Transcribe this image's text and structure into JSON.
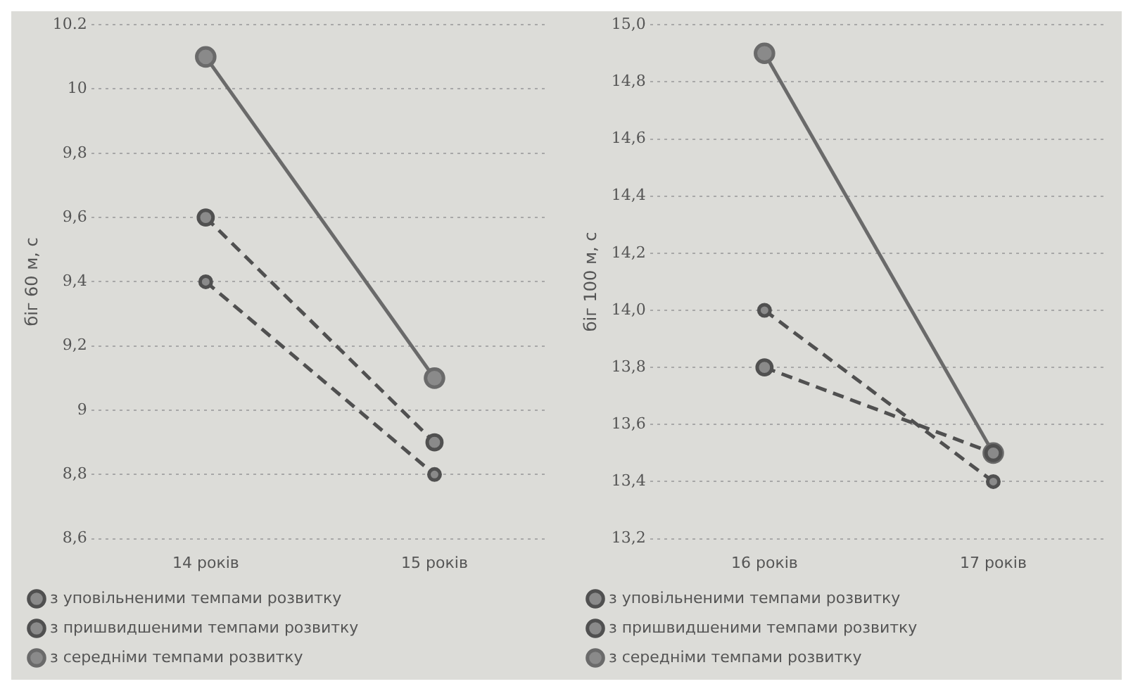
{
  "chart_data": [
    {
      "type": "line",
      "ylabel": "біг 60 м, с",
      "categories": [
        "14 років",
        "15 років"
      ],
      "ylim": [
        8.6,
        10.2
      ],
      "yticks": [
        {
          "value": 8.6,
          "label": "8,6"
        },
        {
          "value": 8.8,
          "label": "8,8"
        },
        9,
        {
          "value": 9.2,
          "label": "9,2"
        },
        {
          "value": 9.4,
          "label": "9,4"
        },
        {
          "value": 9.6,
          "label": "9,6"
        },
        {
          "value": 9.8,
          "label": "9,8"
        },
        10,
        {
          "value": 10.2,
          "label": "10.2"
        }
      ],
      "grid": "y",
      "legend": "bottom",
      "marker": "circle",
      "series": [
        {
          "name": "з уповільненими темпами розвитку",
          "color": "#505050",
          "values": [
            9.4,
            8.8
          ],
          "line_style": "dashed"
        },
        {
          "name": "з пришвидшеними темпами розвитку",
          "color": "#505050",
          "values": [
            9.6,
            8.9
          ],
          "line_style": "dashed"
        },
        {
          "name": "з середніми темпами розвитку",
          "color": "#6a6a6a",
          "values": [
            10.1,
            9.1
          ],
          "line_style": "solid"
        }
      ]
    },
    {
      "type": "line",
      "ylabel": "біг 100 м, с",
      "categories": [
        "16 років",
        "17 років"
      ],
      "ylim": [
        13.2,
        15.0
      ],
      "yticks": [
        {
          "value": 13.2,
          "label": "13,2"
        },
        {
          "value": 13.4,
          "label": "13,4"
        },
        {
          "value": 13.6,
          "label": "13,6"
        },
        {
          "value": 13.8,
          "label": "13,8"
        },
        {
          "value": 14.0,
          "label": "14,0"
        },
        {
          "value": 14.2,
          "label": "14,2"
        },
        {
          "value": 14.4,
          "label": "14,4"
        },
        {
          "value": 14.6,
          "label": "14,6"
        },
        {
          "value": 14.8,
          "label": "14,8"
        },
        {
          "value": 15.0,
          "label": "15,0"
        }
      ],
      "grid": "y",
      "legend": "bottom",
      "marker": "circle",
      "series": [
        {
          "name": "з уповільненими темпами розвитку",
          "color": "#505050",
          "values": [
            14.0,
            13.4
          ],
          "line_style": "dashed"
        },
        {
          "name": "з пришвидшеними темпами розвитку",
          "color": "#505050",
          "values": [
            13.8,
            13.5
          ],
          "line_style": "dashed"
        },
        {
          "name": "з середніми темпами розвитку",
          "color": "#6a6a6a",
          "values": [
            14.9,
            13.5
          ],
          "line_style": "solid"
        }
      ]
    }
  ]
}
